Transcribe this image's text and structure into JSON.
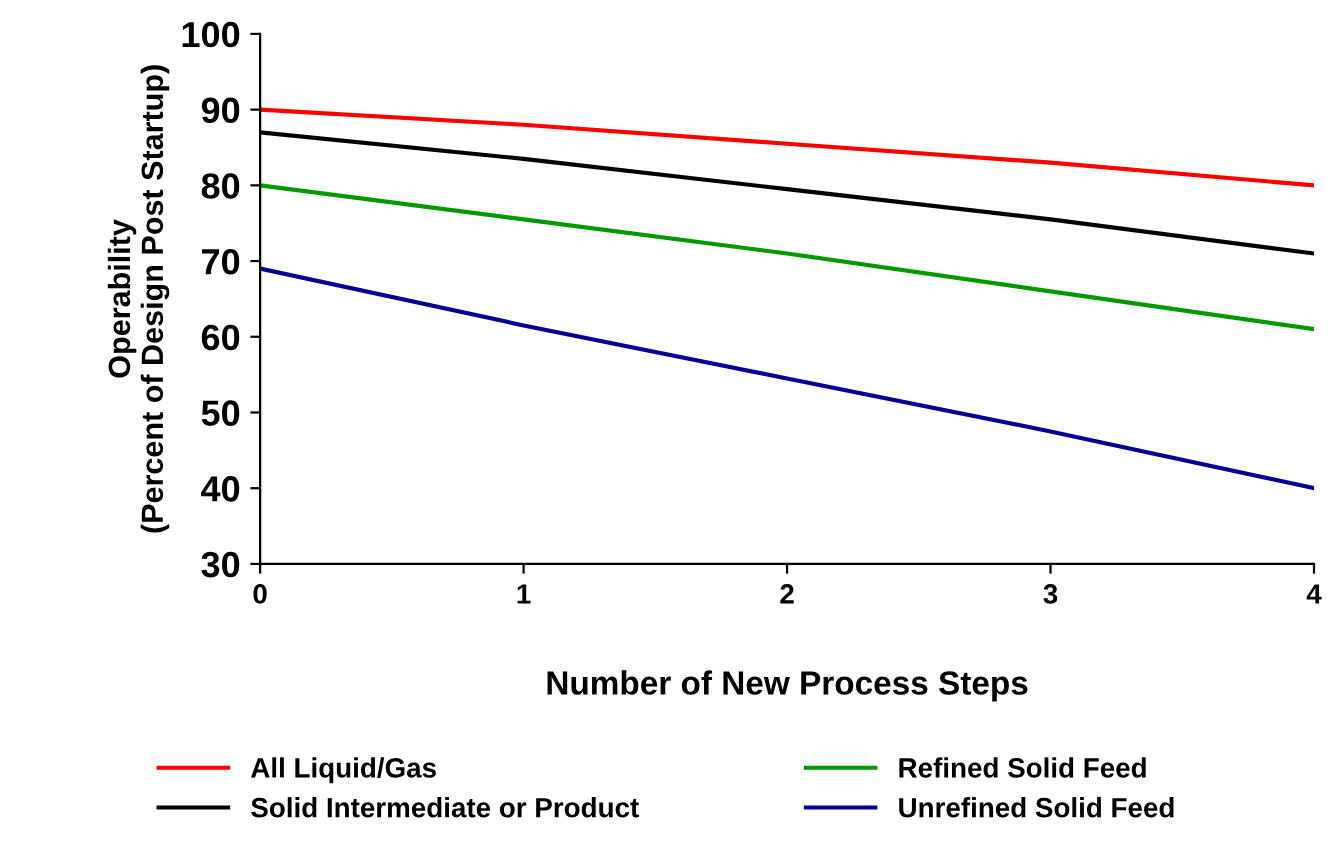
{
  "chart_data": {
    "type": "line",
    "xlabel": "Number of New Process Steps",
    "ylabel": "Operability\n(Percent of Design Post Startup)",
    "x": [
      0,
      1,
      2,
      3,
      4
    ],
    "xlim": [
      0,
      4
    ],
    "xticks": [
      0,
      1,
      2,
      3,
      4
    ],
    "ylim": [
      30,
      100
    ],
    "yticks": [
      30,
      40,
      50,
      60,
      70,
      80,
      90,
      100
    ],
    "grid": false,
    "legend": "bottom",
    "marker": "none",
    "line_style": "solid",
    "series": [
      {
        "name": "All Liquid/Gas",
        "color": "#ff0000",
        "values": [
          90,
          88,
          85.5,
          83,
          80
        ]
      },
      {
        "name": "Solid Intermediate or Product",
        "color": "#000000",
        "values": [
          87,
          83.5,
          79.5,
          75.5,
          71
        ]
      },
      {
        "name": "Refined Solid Feed",
        "color": "#009900",
        "values": [
          80,
          75.5,
          71,
          66,
          61
        ]
      },
      {
        "name": "Unrefined Solid Feed",
        "color": "#000099",
        "values": [
          69,
          61.5,
          54.5,
          47.5,
          40
        ]
      }
    ]
  }
}
